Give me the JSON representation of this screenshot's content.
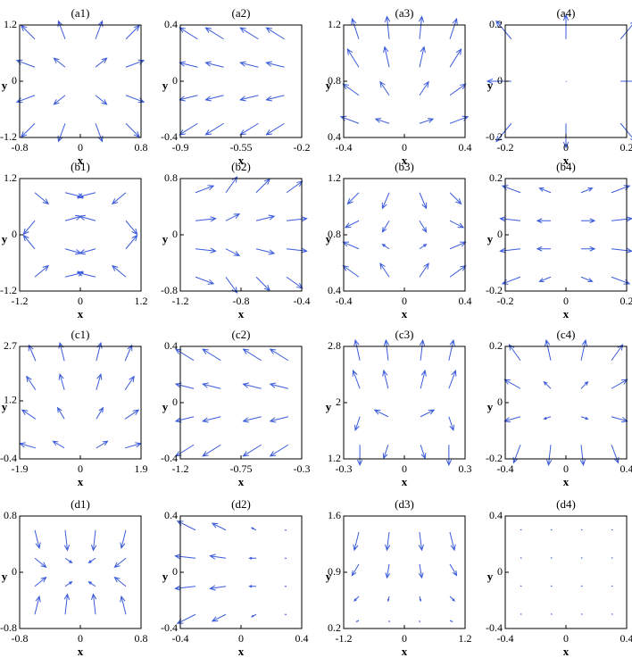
{
  "chart_data": [
    {
      "type": "quiver",
      "title": "(a1)",
      "xlabel": "x",
      "ylabel": "y",
      "color": "#3b5bdb",
      "xlim": [
        -0.8,
        0.8
      ],
      "xticks": [
        -0.8,
        0,
        0.8
      ],
      "ylim": [
        -1.2,
        1.2
      ],
      "yticks": [
        -1.2,
        0,
        1.2
      ],
      "x": [
        -0.6,
        -0.2,
        0.2,
        0.6
      ],
      "y": [
        0.9,
        0.3,
        -0.3,
        -0.9
      ],
      "u": [
        [
          -0.6,
          -0.3,
          0.3,
          0.6
        ],
        [
          -0.8,
          -0.5,
          0.5,
          0.8
        ],
        [
          -0.8,
          -0.5,
          0.5,
          0.8
        ],
        [
          -0.6,
          -0.3,
          0.3,
          0.6
        ]
      ],
      "v": [
        [
          0.6,
          0.8,
          0.8,
          0.6
        ],
        [
          0.3,
          0.4,
          0.4,
          0.3
        ],
        [
          -0.3,
          -0.4,
          -0.4,
          -0.3
        ],
        [
          -0.6,
          -0.8,
          -0.8,
          -0.6
        ]
      ]
    },
    {
      "type": "quiver",
      "title": "(a2)",
      "xlabel": "x",
      "ylabel": "y",
      "color": "#3b5bdb",
      "xlim": [
        -0.9,
        -0.2
      ],
      "xticks": [
        -0.9,
        -0.55,
        -0.2
      ],
      "ylim": [
        -0.4,
        0.4
      ],
      "yticks": [
        -0.4,
        0,
        0.4
      ],
      "x": [
        -0.8,
        -0.65,
        -0.45,
        -0.3
      ],
      "y": [
        0.3,
        0.1,
        -0.1,
        -0.3
      ],
      "u": [
        [
          -0.8,
          -0.8,
          -0.8,
          -0.8
        ],
        [
          -0.8,
          -0.8,
          -0.8,
          -0.8
        ],
        [
          -0.8,
          -0.8,
          -0.8,
          -0.8
        ],
        [
          -0.8,
          -0.8,
          -0.8,
          -0.8
        ]
      ],
      "v": [
        [
          0.5,
          0.5,
          0.5,
          0.5
        ],
        [
          0.2,
          0.2,
          0.2,
          0.2
        ],
        [
          -0.2,
          -0.2,
          -0.2,
          -0.2
        ],
        [
          -0.5,
          -0.5,
          -0.5,
          -0.5
        ]
      ]
    },
    {
      "type": "quiver",
      "title": "(a3)",
      "xlabel": "x",
      "ylabel": "y",
      "color": "#3b5bdb",
      "xlim": [
        -0.4,
        0.4
      ],
      "xticks": [
        -0.4,
        0,
        0.4
      ],
      "ylim": [
        0.4,
        1.2
      ],
      "yticks": [
        0.4,
        0.8,
        1.2
      ],
      "x": [
        -0.3,
        -0.1,
        0.1,
        0.3
      ],
      "y": [
        1.1,
        0.9,
        0.7,
        0.5
      ],
      "u": [
        [
          -0.3,
          -0.1,
          0.1,
          0.3
        ],
        [
          -0.5,
          -0.2,
          0.2,
          0.5
        ],
        [
          -0.7,
          -0.4,
          0.4,
          0.7
        ],
        [
          -0.8,
          -0.6,
          0.6,
          0.8
        ]
      ],
      "v": [
        [
          0.9,
          1,
          1,
          0.9
        ],
        [
          0.8,
          0.9,
          0.9,
          0.8
        ],
        [
          0.5,
          0.6,
          0.6,
          0.5
        ],
        [
          0.3,
          0.2,
          0.2,
          0.3
        ]
      ]
    },
    {
      "type": "quiver",
      "title": "(a4)",
      "xlabel": "x",
      "ylabel": "y",
      "color": "#3b5bdb",
      "xlim": [
        -0.2,
        0.2
      ],
      "xticks": [
        -0.2,
        0,
        0.2
      ],
      "ylim": [
        -0.2,
        0.2
      ],
      "yticks": [
        -0.2,
        0,
        0.2
      ],
      "x": [
        -0.18,
        0,
        0.18
      ],
      "y": [
        0.15,
        0,
        -0.15
      ],
      "u": [
        [
          -0.5,
          0,
          0.5
        ],
        [
          -0.8,
          0,
          0.8
        ],
        [
          -0.5,
          0,
          0.5
        ]
      ],
      "v": [
        [
          0.6,
          0.8,
          0.6
        ],
        [
          0,
          0,
          0
        ],
        [
          -0.6,
          -0.8,
          -0.6
        ]
      ]
    },
    {
      "type": "quiver",
      "title": "(b1)",
      "xlabel": "x",
      "ylabel": "y",
      "color": "#3b5bdb",
      "xlim": [
        -1.2,
        1.2
      ],
      "xticks": [
        -1.2,
        0,
        1.2
      ],
      "ylim": [
        -1.2,
        1.2
      ],
      "yticks": [
        -1.2,
        0,
        1.2
      ],
      "x": [
        -0.9,
        -0.3,
        0.3,
        0.9
      ],
      "y": [
        0.9,
        0.3,
        -0.3,
        -0.9
      ],
      "u": [
        [
          0.6,
          0.8,
          -0.8,
          -0.6
        ],
        [
          -0.5,
          0.7,
          -0.7,
          0.5
        ],
        [
          -0.5,
          0.7,
          -0.7,
          0.5
        ],
        [
          0.6,
          0.8,
          -0.8,
          -0.6
        ]
      ],
      "v": [
        [
          -0.5,
          -0.2,
          -0.2,
          -0.5
        ],
        [
          -0.6,
          0.2,
          0.2,
          -0.6
        ],
        [
          0.6,
          -0.2,
          -0.2,
          0.6
        ],
        [
          0.5,
          0.2,
          0.2,
          0.5
        ]
      ]
    },
    {
      "type": "quiver",
      "title": "(b2)",
      "xlabel": "x",
      "ylabel": "y",
      "color": "#3b5bdb",
      "xlim": [
        -1.2,
        -0.4
      ],
      "xticks": [
        -1.2,
        -0.8,
        -0.4
      ],
      "ylim": [
        -0.8,
        0.8
      ],
      "yticks": [
        -0.8,
        0,
        0.8
      ],
      "x": [
        -1.1,
        -0.9,
        -0.7,
        -0.5
      ],
      "y": [
        0.6,
        0.2,
        -0.2,
        -0.6
      ],
      "u": [
        [
          0.8,
          0.5,
          0.6,
          0.7
        ],
        [
          0.9,
          0.6,
          0.8,
          0.9
        ],
        [
          0.9,
          0.6,
          0.8,
          0.9
        ],
        [
          0.8,
          0.5,
          0.6,
          0.7
        ]
      ],
      "v": [
        [
          0.3,
          0.7,
          0.6,
          0.5
        ],
        [
          0.1,
          0.3,
          0.2,
          0.1
        ],
        [
          -0.1,
          -0.3,
          -0.2,
          -0.1
        ],
        [
          -0.3,
          -0.7,
          -0.6,
          -0.5
        ]
      ]
    },
    {
      "type": "quiver",
      "title": "(b3)",
      "xlabel": "x",
      "ylabel": "y",
      "color": "#3b5bdb",
      "xlim": [
        -0.4,
        0.4
      ],
      "xticks": [
        -0.4,
        0,
        0.4
      ],
      "ylim": [
        0.4,
        1.2
      ],
      "yticks": [
        0.4,
        0.8,
        1.2
      ],
      "x": [
        -0.3,
        -0.1,
        0.1,
        0.3
      ],
      "y": [
        1.1,
        0.9,
        0.7,
        0.5
      ],
      "u": [
        [
          -0.5,
          -0.3,
          0.3,
          0.5
        ],
        [
          -0.6,
          -0.3,
          0.3,
          0.6
        ],
        [
          -0.7,
          -0.3,
          0.3,
          0.7
        ],
        [
          -0.7,
          -0.4,
          0.4,
          0.7
        ]
      ],
      "v": [
        [
          -0.5,
          -0.7,
          -0.7,
          -0.5
        ],
        [
          -0.3,
          -0.5,
          -0.5,
          -0.3
        ],
        [
          0.3,
          0.2,
          0.2,
          0.3
        ],
        [
          0.5,
          0.6,
          0.6,
          0.5
        ]
      ]
    },
    {
      "type": "quiver",
      "title": "(b4)",
      "xlabel": "x",
      "ylabel": "y",
      "color": "#3b5bdb",
      "xlim": [
        -0.2,
        0.2
      ],
      "xticks": [
        -0.2,
        0,
        0.2
      ],
      "ylim": [
        -0.2,
        0.2
      ],
      "yticks": [
        -0.2,
        0,
        0.2
      ],
      "x": [
        -0.15,
        -0.05,
        0.05,
        0.15
      ],
      "y": [
        0.15,
        0.05,
        -0.05,
        -0.15
      ],
      "u": [
        [
          -0.8,
          -0.5,
          0.5,
          0.8
        ],
        [
          -0.9,
          -0.6,
          0.6,
          0.9
        ],
        [
          -0.9,
          -0.6,
          0.6,
          0.9
        ],
        [
          -0.8,
          -0.5,
          0.5,
          0.8
        ]
      ],
      "v": [
        [
          0.3,
          0.2,
          0.2,
          0.3
        ],
        [
          0.1,
          0,
          0,
          0.1
        ],
        [
          -0.1,
          0,
          0,
          -0.1
        ],
        [
          -0.3,
          -0.2,
          -0.2,
          -0.3
        ]
      ]
    },
    {
      "type": "quiver",
      "title": "(c1)",
      "xlabel": "x",
      "ylabel": "y",
      "color": "#3b5bdb",
      "xlim": [
        -1.9,
        1.9
      ],
      "xticks": [
        -1.9,
        0,
        1.9
      ],
      "ylim": [
        -0.4,
        2.7
      ],
      "yticks": [
        -0.4,
        1.2,
        2.7
      ],
      "x": [
        -1.4,
        -0.5,
        0.5,
        1.4
      ],
      "y": [
        2.3,
        1.5,
        0.7,
        -0.1
      ],
      "u": [
        [
          -0.3,
          -0.2,
          0.2,
          0.3
        ],
        [
          -0.4,
          -0.2,
          0.2,
          0.4
        ],
        [
          -0.6,
          -0.3,
          0.3,
          0.6
        ],
        [
          -0.7,
          -0.5,
          0.5,
          0.7
        ]
      ],
      "v": [
        [
          0.7,
          0.8,
          0.8,
          0.7
        ],
        [
          0.6,
          0.7,
          0.7,
          0.6
        ],
        [
          0.4,
          0.5,
          0.5,
          0.4
        ],
        [
          0.2,
          0.3,
          0.3,
          0.2
        ]
      ]
    },
    {
      "type": "quiver",
      "title": "(c2)",
      "xlabel": "x",
      "ylabel": "y",
      "color": "#3b5bdb",
      "xlim": [
        -1.2,
        -0.3
      ],
      "xticks": [
        -1.2,
        -0.75,
        -0.3
      ],
      "ylim": [
        -0.4,
        0.4
      ],
      "yticks": [
        -0.4,
        0,
        0.4
      ],
      "x": [
        -1.1,
        -0.9,
        -0.6,
        -0.4
      ],
      "y": [
        0.3,
        0.1,
        -0.1,
        -0.3
      ],
      "u": [
        [
          -0.8,
          -0.8,
          -0.8,
          -0.8
        ],
        [
          -0.8,
          -0.8,
          -0.8,
          -0.8
        ],
        [
          -0.8,
          -0.8,
          -0.8,
          -0.8
        ],
        [
          -0.8,
          -0.8,
          -0.8,
          -0.8
        ]
      ],
      "v": [
        [
          0.5,
          0.5,
          0.5,
          0.5
        ],
        [
          0.2,
          0.2,
          0.2,
          0.2
        ],
        [
          -0.2,
          -0.2,
          -0.2,
          -0.2
        ],
        [
          -0.5,
          -0.5,
          -0.5,
          -0.5
        ]
      ]
    },
    {
      "type": "quiver",
      "title": "(c3)",
      "xlabel": "x",
      "ylabel": "y",
      "color": "#3b5bdb",
      "xlim": [
        -0.3,
        0.3
      ],
      "xticks": [
        -0.3,
        0,
        0.3
      ],
      "ylim": [
        1.2,
        2.8
      ],
      "yticks": [
        1.2,
        2,
        2.8
      ],
      "x": [
        -0.22,
        -0.08,
        0.08,
        0.22
      ],
      "y": [
        2.6,
        2.2,
        1.8,
        1.4
      ],
      "u": [
        [
          -0.2,
          -0.1,
          0.1,
          0.2
        ],
        [
          -0.3,
          -0.2,
          0.2,
          0.3
        ],
        [
          -0.2,
          -0.6,
          0.6,
          0.2
        ],
        [
          0,
          -0.2,
          0.2,
          0
        ]
      ],
      "v": [
        [
          0.9,
          0.9,
          0.9,
          0.9
        ],
        [
          0.8,
          0.8,
          0.8,
          0.8
        ],
        [
          -0.6,
          0.3,
          0.3,
          -0.6
        ],
        [
          -0.9,
          -0.6,
          -0.6,
          -0.9
        ]
      ]
    },
    {
      "type": "quiver",
      "title": "(c4)",
      "xlabel": "x",
      "ylabel": "y",
      "color": "#3b5bdb",
      "xlim": [
        -0.4,
        0.4
      ],
      "xticks": [
        -0.4,
        0,
        0.4
      ],
      "ylim": [
        -0.2,
        0.2
      ],
      "yticks": [
        -0.2,
        0,
        0.2
      ],
      "x": [
        -0.3,
        -0.1,
        0.1,
        0.3
      ],
      "y": [
        0.15,
        0.05,
        -0.05,
        -0.15
      ],
      "u": [
        [
          -0.5,
          -0.2,
          0.2,
          0.5
        ],
        [
          -0.7,
          -0.3,
          0.3,
          0.7
        ],
        [
          -0.7,
          -0.3,
          0.3,
          0.7
        ],
        [
          -0.3,
          -0.1,
          0.1,
          0.3
        ]
      ],
      "v": [
        [
          0.7,
          0.9,
          0.9,
          0.7
        ],
        [
          0.4,
          0.3,
          0.3,
          0.4
        ],
        [
          -0.2,
          -0.1,
          -0.1,
          -0.2
        ],
        [
          -0.8,
          -0.9,
          -0.9,
          -0.8
        ]
      ]
    },
    {
      "type": "quiver",
      "title": "(d1)",
      "xlabel": "x",
      "ylabel": "y",
      "color": "#3b5bdb",
      "xlim": [
        -0.8,
        0.8
      ],
      "xticks": [
        -0.8,
        0,
        0.8
      ],
      "ylim": [
        -0.8,
        0.8
      ],
      "yticks": [
        -0.8,
        0,
        0.8
      ],
      "x": [
        -0.6,
        -0.2,
        0.2,
        0.6
      ],
      "y": [
        0.6,
        0.2,
        -0.2,
        -0.6
      ],
      "u": [
        [
          0.2,
          0.1,
          -0.1,
          -0.2
        ],
        [
          0.5,
          0.3,
          -0.3,
          -0.5
        ],
        [
          0.5,
          0.3,
          -0.3,
          -0.5
        ],
        [
          0.2,
          0.1,
          -0.1,
          -0.2
        ]
      ],
      "v": [
        [
          -0.8,
          -0.9,
          -0.9,
          -0.8
        ],
        [
          -0.4,
          -0.2,
          -0.2,
          -0.4
        ],
        [
          0.4,
          0.2,
          0.2,
          0.4
        ],
        [
          0.8,
          0.9,
          0.9,
          0.8
        ]
      ]
    },
    {
      "type": "quiver",
      "title": "(d2)",
      "xlabel": "x",
      "ylabel": "y",
      "color": "#3b5bdb",
      "xlim": [
        -0.4,
        0.4
      ],
      "xticks": [
        -0.4,
        0,
        0.4
      ],
      "ylim": [
        -0.4,
        0.4
      ],
      "yticks": [
        -0.4,
        0,
        0.4
      ],
      "x": [
        -0.3,
        -0.1,
        0.1,
        0.3
      ],
      "y": [
        0.3,
        0.1,
        -0.1,
        -0.3
      ],
      "u": [
        [
          -0.8,
          -0.6,
          -0.2,
          -0.05
        ],
        [
          -0.9,
          -0.7,
          -0.3,
          -0.05
        ],
        [
          -0.9,
          -0.7,
          -0.3,
          -0.05
        ],
        [
          -0.8,
          -0.6,
          -0.2,
          -0.05
        ]
      ],
      "v": [
        [
          0.4,
          0.3,
          0.1,
          0
        ],
        [
          0.1,
          0.1,
          0,
          0
        ],
        [
          -0.1,
          -0.1,
          0,
          0
        ],
        [
          -0.4,
          -0.3,
          -0.1,
          0
        ]
      ]
    },
    {
      "type": "quiver",
      "title": "(d3)",
      "xlabel": "x",
      "ylabel": "y",
      "color": "#3b5bdb",
      "xlim": [
        -1.2,
        1.2
      ],
      "xticks": [
        -1.2,
        0,
        1.2
      ],
      "ylim": [
        0.2,
        1.6
      ],
      "yticks": [
        0.2,
        0.9,
        1.6
      ],
      "x": [
        -0.9,
        -0.3,
        0.3,
        0.9
      ],
      "y": [
        1.4,
        1.0,
        0.6,
        0.3
      ],
      "u": [
        [
          -0.2,
          -0.1,
          0.1,
          0.2
        ],
        [
          -0.3,
          -0.1,
          0.1,
          0.3
        ],
        [
          -0.2,
          -0.05,
          0.05,
          0.2
        ],
        [
          -0.1,
          0,
          0,
          0.1
        ]
      ],
      "v": [
        [
          -0.8,
          -0.8,
          -0.8,
          -0.8
        ],
        [
          -0.5,
          -0.6,
          -0.6,
          -0.5
        ],
        [
          -0.2,
          -0.2,
          -0.2,
          -0.2
        ],
        [
          -0.05,
          -0.05,
          -0.05,
          -0.05
        ]
      ]
    },
    {
      "type": "quiver",
      "title": "(d4)",
      "xlabel": "x",
      "ylabel": "y",
      "color": "#3b5bdb",
      "xlim": [
        -0.4,
        0.4
      ],
      "xticks": [
        -0.4,
        0,
        0.4
      ],
      "ylim": [
        -0.4,
        0.4
      ],
      "yticks": [
        -0.4,
        0,
        0.4
      ],
      "x": [
        -0.3,
        -0.1,
        0.1,
        0.3
      ],
      "y": [
        0.3,
        0.1,
        -0.1,
        -0.3
      ],
      "u": [
        [
          0.03,
          0.03,
          0.03,
          0.03
        ],
        [
          0.03,
          0.03,
          0.03,
          0.03
        ],
        [
          0.03,
          0.03,
          0.03,
          0.03
        ],
        [
          0.03,
          0.03,
          0.03,
          0.03
        ]
      ],
      "v": [
        [
          0.02,
          0.02,
          0.02,
          0.02
        ],
        [
          0.02,
          0.02,
          0.02,
          0.02
        ],
        [
          0.02,
          0.02,
          0.02,
          0.02
        ],
        [
          0.02,
          0.02,
          0.02,
          0.02
        ]
      ]
    }
  ]
}
